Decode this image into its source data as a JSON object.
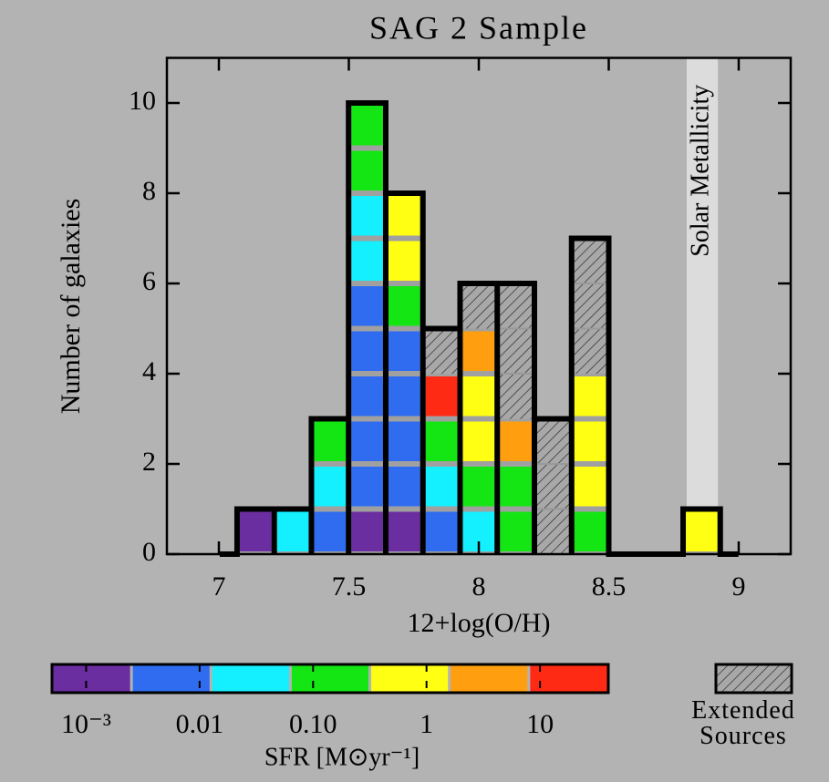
{
  "chart_data": {
    "type": "histogram",
    "title": "SAG 2 Sample",
    "xlabel": "12+log(O/H)",
    "ylabel": "Number of galaxies",
    "bins": [
      7.07,
      7.213,
      7.356,
      7.499,
      7.642,
      7.785,
      7.928,
      8.071,
      8.214,
      8.357,
      8.5,
      8.643,
      8.786,
      8.929
    ],
    "series": [
      {
        "color": "#6a2ea0",
        "values": [
          1,
          0,
          0,
          1,
          1,
          0,
          0,
          0,
          0,
          0,
          0,
          0,
          0
        ]
      },
      {
        "color": "#2f6cf0",
        "values": [
          0,
          0,
          1,
          5,
          4,
          1,
          0,
          0,
          0,
          0,
          0,
          0,
          0
        ]
      },
      {
        "color": "#14f0ff",
        "values": [
          0,
          1,
          1,
          2,
          0,
          1,
          1,
          0,
          0,
          0,
          0,
          0,
          0
        ]
      },
      {
        "color": "#14e614",
        "values": [
          0,
          0,
          1,
          2,
          1,
          1,
          1,
          2,
          0,
          1,
          0,
          0,
          0
        ]
      },
      {
        "color": "#ffff14",
        "values": [
          0,
          0,
          0,
          0,
          2,
          0,
          2,
          0,
          0,
          3,
          0,
          0,
          1
        ]
      },
      {
        "color": "#ff9f0f",
        "values": [
          0,
          0,
          0,
          0,
          0,
          0,
          1,
          1,
          0,
          0,
          0,
          0,
          0
        ]
      },
      {
        "color": "#ff2a14",
        "values": [
          0,
          0,
          0,
          0,
          0,
          1,
          0,
          0,
          0,
          0,
          0,
          0,
          0
        ]
      },
      {
        "name": "Extended Sources",
        "color": "hatch",
        "values": [
          0,
          0,
          0,
          0,
          0,
          1,
          1,
          3,
          3,
          3,
          0,
          0,
          0
        ]
      }
    ],
    "xlim": [
      6.8,
      9.2
    ],
    "xticks": [
      7,
      7.5,
      8,
      8.5,
      9
    ],
    "ylim": [
      0,
      11
    ],
    "yticks": [
      0,
      2,
      4,
      6,
      8,
      10
    ],
    "annotation": {
      "text": "Solar Metallicity",
      "x_range": [
        8.8,
        8.92
      ]
    },
    "colorbar": {
      "label": "SFR [M⊙yr⁻¹]",
      "scale": "log",
      "lim": [
        0.0005,
        40
      ],
      "ticks": [
        {
          "value": 0.001,
          "label": "10⁻³"
        },
        0.01,
        {
          "value": 0.1,
          "label": "0.10"
        },
        1,
        10
      ]
    }
  }
}
